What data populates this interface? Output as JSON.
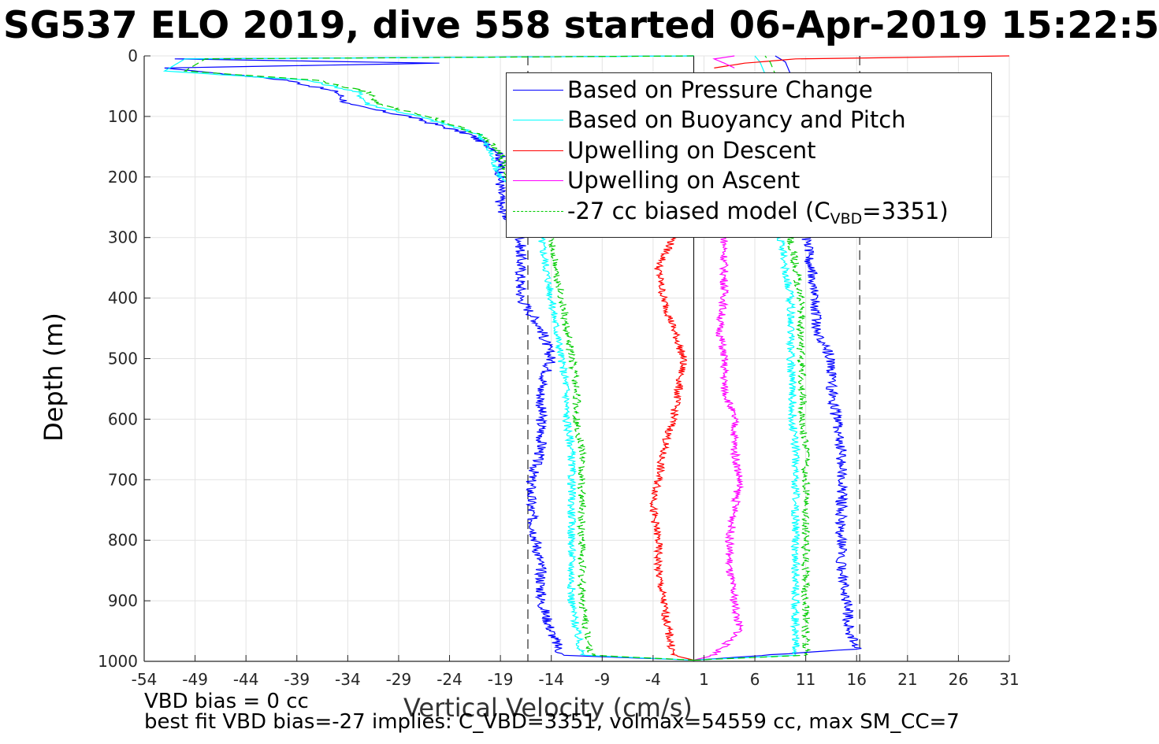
{
  "title": "SG537 ELO 2019, dive 558 started 06-Apr-2019 15:22:5",
  "footer": {
    "line1": "VBD bias = 0 cc",
    "line2": "best fit VBD bias=-27 implies: C_VBD=3351, volmax=54559 cc, max SM_CC=7"
  },
  "legend": {
    "items": [
      {
        "label": "Based on Pressure Change",
        "color": "#0000ff",
        "dash": "solid"
      },
      {
        "label": "Based on Buoyancy and Pitch",
        "color": "#00ffff",
        "dash": "solid"
      },
      {
        "label": "Upwelling on Descent",
        "color": "#ff0000",
        "dash": "solid"
      },
      {
        "label": "Upwelling on Ascent",
        "color": "#ff00ff",
        "dash": "solid"
      },
      {
        "label_pre": "-27 cc biased model (C",
        "label_sub": "VBD",
        "label_post": "=3351)",
        "color": "#00cc00",
        "dash": "dashed"
      }
    ]
  },
  "chart_data": {
    "type": "line",
    "title": "SG537 ELO 2019, dive 558 started 06-Apr-2019 15:22:5",
    "xlabel": "Vertical Velocity (cm/s)",
    "ylabel": "Depth (m)",
    "xlim": [
      -54,
      31
    ],
    "ylim": [
      0,
      1000
    ],
    "y_reversed": true,
    "grid": true,
    "legend_position": "top-right",
    "xticks": [
      "-54",
      "-49",
      "-44",
      "-39",
      "-34",
      "-29",
      "-24",
      "-19",
      "-14",
      "-9",
      "-4",
      "1",
      "6",
      "11",
      "16",
      "21",
      "26",
      "31"
    ],
    "yticks": [
      "0",
      "100",
      "200",
      "300",
      "400",
      "500",
      "600",
      "700",
      "800",
      "900",
      "1000"
    ],
    "reference_lines": {
      "solid_x": 0,
      "dashed_x": [
        -16.3,
        16.3
      ]
    },
    "series": [
      {
        "name": "Based on Pressure Change",
        "color": "#0000ff",
        "descent": [
          [
            0,
            0
          ],
          [
            5,
            -51
          ],
          [
            12,
            -25
          ],
          [
            20,
            -52
          ],
          [
            40,
            -40
          ],
          [
            60,
            -35
          ],
          [
            80,
            -34
          ],
          [
            100,
            -28
          ],
          [
            130,
            -22
          ],
          [
            160,
            -19
          ],
          [
            200,
            -19
          ],
          [
            250,
            -19
          ],
          [
            300,
            -17
          ],
          [
            350,
            -17
          ],
          [
            400,
            -17
          ],
          [
            450,
            -15
          ],
          [
            500,
            -14
          ],
          [
            550,
            -15
          ],
          [
            600,
            -15
          ],
          [
            650,
            -15
          ],
          [
            700,
            -16
          ],
          [
            750,
            -16
          ],
          [
            800,
            -15.5
          ],
          [
            850,
            -15
          ],
          [
            900,
            -15
          ],
          [
            950,
            -14
          ],
          [
            990,
            -13
          ],
          [
            998,
            0
          ]
        ],
        "ascent": [
          [
            998,
            0
          ],
          [
            980,
            16
          ],
          [
            950,
            15.3
          ],
          [
            900,
            15
          ],
          [
            850,
            14.5
          ],
          [
            800,
            14.5
          ],
          [
            750,
            14.5
          ],
          [
            700,
            14.5
          ],
          [
            650,
            14.5
          ],
          [
            600,
            14
          ],
          [
            550,
            13.5
          ],
          [
            500,
            13.5
          ],
          [
            450,
            12
          ],
          [
            400,
            12
          ],
          [
            350,
            11.5
          ],
          [
            300,
            11
          ],
          [
            250,
            11
          ],
          [
            200,
            11
          ],
          [
            150,
            10.5
          ],
          [
            100,
            10.5
          ],
          [
            50,
            10
          ],
          [
            10,
            9
          ],
          [
            0,
            8
          ]
        ]
      },
      {
        "name": "Based on Buoyancy and Pitch",
        "color": "#00ffff",
        "descent": [
          [
            0,
            0
          ],
          [
            5,
            -50
          ],
          [
            25,
            -52
          ],
          [
            40,
            -38
          ],
          [
            60,
            -33
          ],
          [
            80,
            -32
          ],
          [
            100,
            -27
          ],
          [
            130,
            -21
          ],
          [
            160,
            -20
          ],
          [
            200,
            -19
          ],
          [
            250,
            -16
          ],
          [
            300,
            -15
          ],
          [
            350,
            -14.5
          ],
          [
            400,
            -14
          ],
          [
            450,
            -13.5
          ],
          [
            500,
            -13
          ],
          [
            550,
            -12.5
          ],
          [
            600,
            -12.5
          ],
          [
            650,
            -12
          ],
          [
            700,
            -12
          ],
          [
            750,
            -12
          ],
          [
            800,
            -12
          ],
          [
            850,
            -12
          ],
          [
            900,
            -12
          ],
          [
            950,
            -11.5
          ],
          [
            990,
            -11
          ],
          [
            998,
            0
          ]
        ],
        "ascent": [
          [
            998,
            0
          ],
          [
            990,
            10
          ],
          [
            950,
            10
          ],
          [
            900,
            10
          ],
          [
            850,
            10
          ],
          [
            800,
            10
          ],
          [
            750,
            10
          ],
          [
            700,
            10
          ],
          [
            650,
            10
          ],
          [
            600,
            9.7
          ],
          [
            550,
            9.7
          ],
          [
            500,
            9.5
          ],
          [
            450,
            9.5
          ],
          [
            400,
            9.5
          ],
          [
            350,
            9
          ],
          [
            300,
            8.5
          ],
          [
            250,
            8.5
          ],
          [
            200,
            8.5
          ],
          [
            150,
            8
          ],
          [
            100,
            8
          ],
          [
            50,
            7.5
          ],
          [
            10,
            6.5
          ],
          [
            0,
            6
          ]
        ]
      },
      {
        "name": "Upwelling on Descent",
        "color": "#ff0000",
        "values": [
          [
            300,
            -2
          ],
          [
            350,
            -3.5
          ],
          [
            400,
            -3
          ],
          [
            450,
            -2
          ],
          [
            500,
            -1
          ],
          [
            550,
            -1.5
          ],
          [
            600,
            -2
          ],
          [
            650,
            -3
          ],
          [
            700,
            -3.5
          ],
          [
            750,
            -4
          ],
          [
            800,
            -3.5
          ],
          [
            850,
            -3.5
          ],
          [
            900,
            -3
          ],
          [
            950,
            -2.5
          ],
          [
            990,
            -2
          ],
          [
            998,
            0
          ]
        ],
        "near_surface": [
          [
            0,
            31
          ],
          [
            5,
            10
          ],
          [
            12,
            5
          ],
          [
            20,
            2
          ]
        ]
      },
      {
        "name": "Upwelling on Ascent",
        "color": "#ff00ff",
        "values": [
          [
            300,
            3
          ],
          [
            350,
            3
          ],
          [
            400,
            3
          ],
          [
            450,
            2.5
          ],
          [
            500,
            3
          ],
          [
            550,
            3
          ],
          [
            600,
            4
          ],
          [
            650,
            4
          ],
          [
            700,
            4.5
          ],
          [
            750,
            4
          ],
          [
            800,
            3.5
          ],
          [
            850,
            3.5
          ],
          [
            900,
            4
          ],
          [
            950,
            4.5
          ],
          [
            990,
            2
          ],
          [
            998,
            0
          ]
        ],
        "near_surface": [
          [
            0,
            4
          ],
          [
            5,
            2
          ],
          [
            12,
            3
          ],
          [
            20,
            4
          ]
        ]
      },
      {
        "name": "-27 cc biased model (C_VBD=3351)",
        "color": "#00cc00",
        "dash": "dashed",
        "descent": [
          [
            0,
            0
          ],
          [
            5,
            -48
          ],
          [
            25,
            -50
          ],
          [
            40,
            -37
          ],
          [
            60,
            -32
          ],
          [
            80,
            -31
          ],
          [
            100,
            -26
          ],
          [
            130,
            -21
          ],
          [
            160,
            -19
          ],
          [
            200,
            -18.5
          ],
          [
            250,
            -15
          ],
          [
            300,
            -14
          ],
          [
            350,
            -13.5
          ],
          [
            400,
            -13
          ],
          [
            450,
            -12.5
          ],
          [
            500,
            -12
          ],
          [
            550,
            -11.5
          ],
          [
            600,
            -11.5
          ],
          [
            650,
            -11
          ],
          [
            700,
            -11
          ],
          [
            750,
            -11
          ],
          [
            800,
            -11
          ],
          [
            850,
            -11
          ],
          [
            900,
            -11
          ],
          [
            950,
            -10.5
          ],
          [
            990,
            -10
          ],
          [
            998,
            0
          ]
        ],
        "ascent": [
          [
            998,
            0
          ],
          [
            990,
            11
          ],
          [
            950,
            11
          ],
          [
            900,
            11
          ],
          [
            850,
            11
          ],
          [
            800,
            11
          ],
          [
            750,
            11
          ],
          [
            700,
            11
          ],
          [
            650,
            11
          ],
          [
            600,
            10.7
          ],
          [
            550,
            10.7
          ],
          [
            500,
            10.5
          ],
          [
            450,
            10.5
          ],
          [
            400,
            10.5
          ],
          [
            350,
            10
          ],
          [
            300,
            9.5
          ],
          [
            250,
            9.5
          ],
          [
            200,
            9.5
          ],
          [
            150,
            9
          ],
          [
            100,
            9
          ],
          [
            50,
            8.5
          ],
          [
            10,
            7.5
          ],
          [
            0,
            7
          ]
        ]
      }
    ]
  }
}
